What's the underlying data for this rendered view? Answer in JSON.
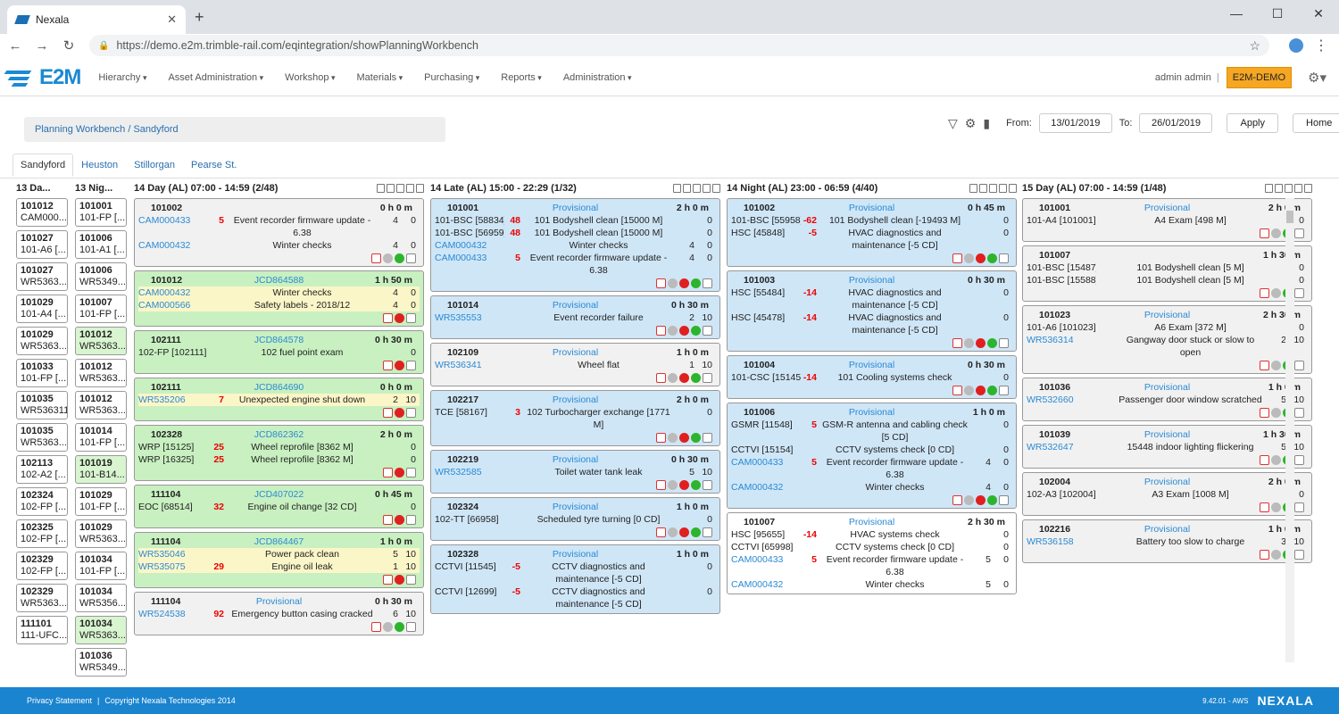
{
  "browser": {
    "tab_title": "Nexala",
    "url": "https://demo.e2m.trimble-rail.com/eqintegration/showPlanningWorkbench"
  },
  "app": {
    "logo": "E2M",
    "menu": [
      "Hierarchy",
      "Asset Administration",
      "Workshop",
      "Materials",
      "Purchasing",
      "Reports",
      "Administration"
    ],
    "user": "admin admin",
    "env": "E2M-DEMO"
  },
  "toolbar": {
    "breadcrumb": "Planning Workbench / Sandyford",
    "from_label": "From:",
    "from": "13/01/2019",
    "to_label": "To:",
    "to": "26/01/2019",
    "apply": "Apply",
    "home": "Home"
  },
  "depots": [
    "Sandyford",
    "Heuston",
    "Stillorgan",
    "Pearse St."
  ],
  "mini_cols": [
    {
      "head": "13 Da...",
      "items": [
        {
          "n": "101012",
          "s": "CAM000..."
        },
        {
          "n": "101027",
          "s": "101-A6 [..."
        },
        {
          "n": "101027",
          "s": "WR5363..."
        },
        {
          "n": "101029",
          "s": "101-A4 [..."
        },
        {
          "n": "101029",
          "s": "WR5363..."
        },
        {
          "n": "101033",
          "s": "101-FP [..."
        },
        {
          "n": "101035",
          "s": "WR536311"
        },
        {
          "n": "101035",
          "s": "WR5363..."
        },
        {
          "n": "102113",
          "s": "102-A2 [..."
        },
        {
          "n": "102324",
          "s": "102-FP [..."
        },
        {
          "n": "102325",
          "s": "102-FP [..."
        },
        {
          "n": "102329",
          "s": "102-FP [..."
        },
        {
          "n": "102329",
          "s": "WR5363..."
        },
        {
          "n": "111101",
          "s": "111-UFC..."
        }
      ]
    },
    {
      "head": "13 Nig...",
      "items": [
        {
          "n": "101001",
          "s": "101-FP [..."
        },
        {
          "n": "101006",
          "s": "101-A1 [..."
        },
        {
          "n": "101006",
          "s": "WR5349..."
        },
        {
          "n": "101007",
          "s": "101-FP [..."
        },
        {
          "n": "101012",
          "s": "WR5363...",
          "g": true
        },
        {
          "n": "101012",
          "s": "WR5363..."
        },
        {
          "n": "101012",
          "s": "WR5363..."
        },
        {
          "n": "101014",
          "s": "101-FP [..."
        },
        {
          "n": "101019",
          "s": "101-B14...",
          "g": true
        },
        {
          "n": "101029",
          "s": "101-FP [..."
        },
        {
          "n": "101029",
          "s": "WR5363..."
        },
        {
          "n": "101034",
          "s": "101-FP [..."
        },
        {
          "n": "101034",
          "s": "WR5356..."
        },
        {
          "n": "101034",
          "s": "WR5363...",
          "g": true
        },
        {
          "n": "101036",
          "s": "WR5349..."
        }
      ]
    }
  ],
  "columns": [
    {
      "head": "14 Day (AL) 07:00 - 14:59 (2/48)",
      "cards": [
        {
          "c": "grey",
          "num": "101002",
          "st": "",
          "dur": "0 h 0 m",
          "rows": [
            {
              "id": "CAM000433",
              "l": true,
              "n": "5",
              "d": "Event recorder firmware update - 6.38",
              "a": "4",
              "b": "0"
            },
            {
              "id": "CAM000432",
              "l": true,
              "n": "",
              "d": "Winter checks",
              "a": "4",
              "b": "0"
            }
          ],
          "ic": "hgg"
        },
        {
          "c": "green",
          "num": "101012",
          "st": "JCD864588",
          "dur": "1 h 50 m",
          "rows": [
            {
              "id": "CAM000432",
              "l": true,
              "n": "",
              "d": "Winter checks",
              "a": "4",
              "b": "0",
              "y": true
            },
            {
              "id": "CAM000566",
              "l": true,
              "n": "",
              "d": "Safety labels - 2018/12",
              "a": "4",
              "b": "0",
              "y": true
            }
          ],
          "ic": "hrh"
        },
        {
          "c": "green",
          "num": "102111",
          "st": "JCD864578",
          "dur": "0 h 30 m",
          "rows": [
            {
              "id": "102-FP [102111]",
              "l": false,
              "n": "",
              "d": "102 fuel point exam",
              "a": "",
              "b": "0"
            }
          ],
          "ic": "hrh"
        },
        {
          "c": "green",
          "num": "102111",
          "st": "JCD864690",
          "dur": "0 h 0 m",
          "rows": [
            {
              "id": "WR535206",
              "l": true,
              "n": "7",
              "d": "Unexpected engine shut down",
              "a": "2",
              "b": "10",
              "y": true
            }
          ],
          "ic": "hrh"
        },
        {
          "c": "green",
          "num": "102328",
          "st": "JCD862362",
          "dur": "2 h 0 m",
          "rows": [
            {
              "id": "WRP [15125]",
              "l": false,
              "n": "25",
              "d": "Wheel reprofile [8362 M]",
              "a": "",
              "b": "0"
            },
            {
              "id": "WRP [16325]",
              "l": false,
              "n": "25",
              "d": "Wheel reprofile [8362 M]",
              "a": "",
              "b": "0"
            }
          ],
          "ic": "hrh"
        },
        {
          "c": "green",
          "num": "111104",
          "st": "JCD407022",
          "dur": "0 h 45 m",
          "rows": [
            {
              "id": "EOC [68514]",
              "l": false,
              "n": "32",
              "d": "Engine oil change [32 CD]",
              "a": "",
              "b": "0"
            }
          ],
          "ic": "hrh"
        },
        {
          "c": "green",
          "num": "111104",
          "st": "JCD864467",
          "dur": "1 h 0 m",
          "rows": [
            {
              "id": "WR535046",
              "l": true,
              "n": "",
              "d": "Power pack clean",
              "a": "5",
              "b": "10",
              "y": true
            },
            {
              "id": "WR535075",
              "l": true,
              "n": "29",
              "d": "Engine oil leak",
              "a": "1",
              "b": "10",
              "y": true
            }
          ],
          "ic": "hrh"
        },
        {
          "c": "grey",
          "num": "111104",
          "st": "Provisional",
          "dur": "0 h 30 m",
          "rows": [
            {
              "id": "WR524538",
              "l": true,
              "n": "92",
              "d": "Emergency button casing cracked",
              "a": "6",
              "b": "10"
            }
          ],
          "ic": "hgg"
        }
      ]
    },
    {
      "head": "14 Late (AL) 15:00 - 22:29 (1/32)",
      "cards": [
        {
          "c": "blue",
          "num": "101001",
          "st": "Provisional",
          "dur": "2 h 0 m",
          "rows": [
            {
              "id": "101-BSC [58834]",
              "l": false,
              "n": "48",
              "d": "101 Bodyshell clean [15000 M]",
              "a": "",
              "b": "0"
            },
            {
              "id": "101-BSC [56959]",
              "l": false,
              "n": "48",
              "d": "101 Bodyshell clean [15000 M]",
              "a": "",
              "b": "0"
            },
            {
              "id": "CAM000432",
              "l": true,
              "n": "",
              "d": "Winter checks",
              "a": "4",
              "b": "0"
            },
            {
              "id": "CAM000433",
              "l": true,
              "n": "5",
              "d": "Event recorder firmware update - 6.38",
              "a": "4",
              "b": "0"
            }
          ],
          "ic": "hgrgh"
        },
        {
          "c": "blue",
          "num": "101014",
          "st": "Provisional",
          "dur": "0 h 30 m",
          "rows": [
            {
              "id": "WR535553",
              "l": true,
              "n": "",
              "d": "Event recorder failure",
              "a": "2",
              "b": "10"
            }
          ],
          "ic": "hgrgh"
        },
        {
          "c": "grey",
          "num": "102109",
          "st": "Provisional",
          "dur": "1 h 0 m",
          "rows": [
            {
              "id": "WR536341",
              "l": true,
              "n": "",
              "d": "Wheel flat",
              "a": "1",
              "b": "10"
            }
          ],
          "ic": "hgrgh"
        },
        {
          "c": "blue",
          "num": "102217",
          "st": "Provisional",
          "dur": "2 h 0 m",
          "rows": [
            {
              "id": "TCE [58167]",
              "l": false,
              "n": "3",
              "d": "102 Turbocharger exchange [1771 M]",
              "a": "",
              "b": "0"
            }
          ],
          "ic": "hgrgh"
        },
        {
          "c": "blue",
          "num": "102219",
          "st": "Provisional",
          "dur": "0 h 30 m",
          "rows": [
            {
              "id": "WR532585",
              "l": true,
              "n": "",
              "d": "Toilet water tank leak",
              "a": "5",
              "b": "10"
            }
          ],
          "ic": "hgrgh"
        },
        {
          "c": "blue",
          "num": "102324",
          "st": "Provisional",
          "dur": "1 h 0 m",
          "rows": [
            {
              "id": "102-TT [66958]",
              "l": false,
              "n": "",
              "d": "Scheduled tyre turning [0 CD]",
              "a": "",
              "b": "0"
            }
          ],
          "ic": "hgrgh"
        },
        {
          "c": "blue",
          "num": "102328",
          "st": "Provisional",
          "dur": "1 h 0 m",
          "rows": [
            {
              "id": "CCTVI [11545]",
              "l": false,
              "n": "-5",
              "d": "CCTV diagnostics and maintenance [-5 CD]",
              "a": "",
              "b": "0"
            },
            {
              "id": "CCTVI [12699]",
              "l": false,
              "n": "-5",
              "d": "CCTV diagnostics and maintenance [-5 CD]",
              "a": "",
              "b": "0"
            }
          ],
          "ic": ""
        }
      ]
    },
    {
      "head": "14 Night (AL) 23:00 - 06:59 (4/40)",
      "cards": [
        {
          "c": "blue",
          "num": "101002",
          "st": "Provisional",
          "dur": "0 h 45 m",
          "rows": [
            {
              "id": "101-BSC [55958]",
              "l": false,
              "n": "-62",
              "d": "101 Bodyshell clean [-19493 M]",
              "a": "",
              "b": "0"
            },
            {
              "id": "HSC [45848]",
              "l": false,
              "n": "-5",
              "d": "HVAC diagnostics and maintenance [-5 CD]",
              "a": "",
              "b": "0"
            }
          ],
          "ic": "hgrgh"
        },
        {
          "c": "blue",
          "num": "101003",
          "st": "Provisional",
          "dur": "0 h 30 m",
          "rows": [
            {
              "id": "HSC [55484]",
              "l": false,
              "n": "-14",
              "d": "HVAC diagnostics and maintenance [-5 CD]",
              "a": "",
              "b": "0"
            },
            {
              "id": "HSC [45478]",
              "l": false,
              "n": "-14",
              "d": "HVAC diagnostics and maintenance [-5 CD]",
              "a": "",
              "b": "0"
            }
          ],
          "ic": "hgrgh"
        },
        {
          "c": "blue",
          "num": "101004",
          "st": "Provisional",
          "dur": "0 h 30 m",
          "rows": [
            {
              "id": "101-CSC [15145]",
              "l": false,
              "n": "-14",
              "d": "101 Cooling systems check",
              "a": "",
              "b": "0"
            }
          ],
          "ic": "hgrgh"
        },
        {
          "c": "blue",
          "num": "101006",
          "st": "Provisional",
          "dur": "1 h 0 m",
          "rows": [
            {
              "id": "GSMR [11548]",
              "l": false,
              "n": "5",
              "d": "GSM-R antenna and cabling check [5 CD]",
              "a": "",
              "b": "0"
            },
            {
              "id": "CCTVI [15154]",
              "l": false,
              "n": "",
              "d": "CCTV systems check [0 CD]",
              "a": "",
              "b": "0"
            },
            {
              "id": "CAM000433",
              "l": true,
              "n": "5",
              "d": "Event recorder firmware update - 6.38",
              "a": "4",
              "b": "0"
            },
            {
              "id": "CAM000432",
              "l": true,
              "n": "",
              "d": "Winter checks",
              "a": "4",
              "b": "0"
            }
          ],
          "ic": "hgrgh"
        },
        {
          "c": "white",
          "num": "101007",
          "st": "Provisional",
          "dur": "2 h 30 m",
          "rows": [
            {
              "id": "HSC [95655]",
              "l": false,
              "n": "-14",
              "d": "HVAC systems check",
              "a": "",
              "b": "0"
            },
            {
              "id": "CCTVI [65998]",
              "l": false,
              "n": "",
              "d": "CCTV systems check [0 CD]",
              "a": "",
              "b": "0"
            },
            {
              "id": "CAM000433",
              "l": true,
              "n": "5",
              "d": "Event recorder firmware update - 6.38",
              "a": "5",
              "b": "0"
            },
            {
              "id": "CAM000432",
              "l": true,
              "n": "",
              "d": "Winter checks",
              "a": "5",
              "b": "0"
            }
          ],
          "ic": ""
        }
      ]
    },
    {
      "head": "15 Day (AL) 07:00 - 14:59 (1/48)",
      "cards": [
        {
          "c": "grey",
          "num": "101001",
          "st": "Provisional",
          "dur": "2 h 0 m",
          "rows": [
            {
              "id": "101-A4 [101001]",
              "l": false,
              "n": "",
              "d": "A4 Exam [498 M]",
              "a": "",
              "b": "0"
            }
          ],
          "ic": "hggh"
        },
        {
          "c": "grey",
          "num": "101007",
          "st": "",
          "dur": "1 h 30 m",
          "rows": [
            {
              "id": "101-BSC [15487]",
              "l": false,
              "n": "",
              "d": "101 Bodyshell clean [5 M]",
              "a": "",
              "b": "0"
            },
            {
              "id": "101-BSC [15588]",
              "l": false,
              "n": "",
              "d": "101 Bodyshell clean [5 M]",
              "a": "",
              "b": "0"
            }
          ],
          "ic": "hggh"
        },
        {
          "c": "grey",
          "num": "101023",
          "st": "Provisional",
          "dur": "2 h 30 m",
          "rows": [
            {
              "id": "101-A6 [101023]",
              "l": false,
              "n": "",
              "d": "A6 Exam [372 M]",
              "a": "",
              "b": "0"
            },
            {
              "id": "WR536314",
              "l": true,
              "n": "",
              "d": "Gangway door stuck or slow to open",
              "a": "2",
              "b": "10"
            }
          ],
          "ic": "hggh"
        },
        {
          "c": "grey",
          "num": "101036",
          "st": "Provisional",
          "dur": "1 h 0 m",
          "rows": [
            {
              "id": "WR532660",
              "l": true,
              "n": "",
              "d": "Passenger door window scratched",
              "a": "5",
              "b": "10"
            }
          ],
          "ic": "hggh"
        },
        {
          "c": "grey",
          "num": "101039",
          "st": "Provisional",
          "dur": "1 h 30 m",
          "rows": [
            {
              "id": "WR532647",
              "l": true,
              "n": "",
              "d": "15448 indoor lighting flickering",
              "a": "5",
              "b": "10"
            }
          ],
          "ic": "hggh"
        },
        {
          "c": "grey",
          "num": "102004",
          "st": "Provisional",
          "dur": "2 h 0 m",
          "rows": [
            {
              "id": "102-A3 [102004]",
              "l": false,
              "n": "",
              "d": "A3 Exam [1008 M]",
              "a": "",
              "b": "0"
            }
          ],
          "ic": "hggh"
        },
        {
          "c": "grey",
          "num": "102216",
          "st": "Provisional",
          "dur": "1 h 0 m",
          "rows": [
            {
              "id": "WR536158",
              "l": true,
              "n": "",
              "d": "Battery too slow to charge",
              "a": "3",
              "b": "10"
            }
          ],
          "ic": "hggh"
        }
      ]
    }
  ],
  "footer": {
    "privacy": "Privacy Statement",
    "copyright": "Copyright Nexala Technologies 2014",
    "version": "9.42.01 - AWS",
    "brand": "NEXALA"
  }
}
